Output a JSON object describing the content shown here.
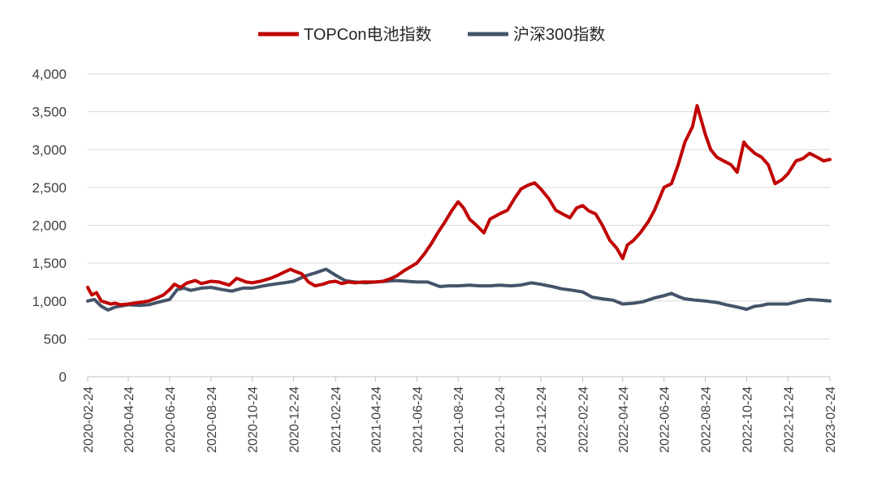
{
  "colors": {
    "series_1": "#c00000",
    "series_2": "#44546a"
  },
  "chart_data": {
    "type": "line",
    "legend_position": "top",
    "grid": true,
    "ylim": [
      0,
      4000
    ],
    "yticks": [
      "0",
      "500",
      "1,000",
      "1,500",
      "2,000",
      "2,500",
      "3,000",
      "3,500",
      "4,000"
    ],
    "ytick_values": [
      0,
      500,
      1000,
      1500,
      2000,
      2500,
      3000,
      3500,
      4000
    ],
    "xlim": [
      "2020-02-24",
      "2023-02-24"
    ],
    "xticks": [
      "2020-02-24",
      "2020-04-24",
      "2020-06-24",
      "2020-08-24",
      "2020-10-24",
      "2020-12-24",
      "2021-02-24",
      "2021-04-24",
      "2021-06-24",
      "2021-08-24",
      "2021-10-24",
      "2021-12-24",
      "2022-02-24",
      "2022-04-24",
      "2022-06-24",
      "2022-08-24",
      "2022-10-24",
      "2022-12-24",
      "2023-02-24"
    ],
    "series": [
      {
        "name": "TOPCon电池指数",
        "color": "#c00000",
        "points": [
          [
            "2020-02-24",
            1180
          ],
          [
            "2020-03-01",
            1080
          ],
          [
            "2020-03-08",
            1110
          ],
          [
            "2020-03-15",
            1000
          ],
          [
            "2020-03-22",
            980
          ],
          [
            "2020-03-29",
            960
          ],
          [
            "2020-04-05",
            970
          ],
          [
            "2020-04-12",
            950
          ],
          [
            "2020-04-24",
            960
          ],
          [
            "2020-05-10",
            980
          ],
          [
            "2020-05-24",
            1000
          ],
          [
            "2020-06-05",
            1040
          ],
          [
            "2020-06-15",
            1080
          ],
          [
            "2020-06-24",
            1150
          ],
          [
            "2020-07-01",
            1220
          ],
          [
            "2020-07-10",
            1180
          ],
          [
            "2020-07-20",
            1240
          ],
          [
            "2020-08-01",
            1270
          ],
          [
            "2020-08-10",
            1230
          ],
          [
            "2020-08-24",
            1260
          ],
          [
            "2020-09-05",
            1250
          ],
          [
            "2020-09-20",
            1210
          ],
          [
            "2020-10-01",
            1300
          ],
          [
            "2020-10-15",
            1250
          ],
          [
            "2020-10-24",
            1240
          ],
          [
            "2020-11-05",
            1260
          ],
          [
            "2020-11-20",
            1300
          ],
          [
            "2020-12-01",
            1340
          ],
          [
            "2020-12-10",
            1380
          ],
          [
            "2020-12-20",
            1420
          ],
          [
            "2020-12-24",
            1400
          ],
          [
            "2021-01-05",
            1360
          ],
          [
            "2021-01-15",
            1250
          ],
          [
            "2021-01-25",
            1200
          ],
          [
            "2021-02-05",
            1220
          ],
          [
            "2021-02-15",
            1250
          ],
          [
            "2021-02-24",
            1260
          ],
          [
            "2021-03-05",
            1230
          ],
          [
            "2021-03-15",
            1250
          ],
          [
            "2021-03-25",
            1240
          ],
          [
            "2021-04-05",
            1250
          ],
          [
            "2021-04-24",
            1250
          ],
          [
            "2021-05-05",
            1260
          ],
          [
            "2021-05-15",
            1290
          ],
          [
            "2021-05-25",
            1330
          ],
          [
            "2021-06-05",
            1400
          ],
          [
            "2021-06-24",
            1500
          ],
          [
            "2021-07-05",
            1620
          ],
          [
            "2021-07-15",
            1750
          ],
          [
            "2021-07-25",
            1900
          ],
          [
            "2021-08-05",
            2050
          ],
          [
            "2021-08-15",
            2200
          ],
          [
            "2021-08-24",
            2310
          ],
          [
            "2021-09-01",
            2230
          ],
          [
            "2021-09-10",
            2080
          ],
          [
            "2021-09-20",
            2000
          ],
          [
            "2021-10-01",
            1900
          ],
          [
            "2021-10-10",
            2080
          ],
          [
            "2021-10-24",
            2150
          ],
          [
            "2021-11-05",
            2200
          ],
          [
            "2021-11-15",
            2350
          ],
          [
            "2021-11-25",
            2480
          ],
          [
            "2021-12-05",
            2530
          ],
          [
            "2021-12-15",
            2560
          ],
          [
            "2021-12-24",
            2480
          ],
          [
            "2022-01-05",
            2350
          ],
          [
            "2022-01-15",
            2200
          ],
          [
            "2022-01-25",
            2150
          ],
          [
            "2022-02-05",
            2100
          ],
          [
            "2022-02-15",
            2230
          ],
          [
            "2022-02-24",
            2260
          ],
          [
            "2022-03-05",
            2190
          ],
          [
            "2022-03-15",
            2150
          ],
          [
            "2022-03-25",
            2000
          ],
          [
            "2022-04-05",
            1800
          ],
          [
            "2022-04-15",
            1700
          ],
          [
            "2022-04-24",
            1560
          ],
          [
            "2022-05-01",
            1740
          ],
          [
            "2022-05-10",
            1800
          ],
          [
            "2022-05-20",
            1900
          ],
          [
            "2022-06-01",
            2050
          ],
          [
            "2022-06-10",
            2200
          ],
          [
            "2022-06-24",
            2500
          ],
          [
            "2022-07-05",
            2550
          ],
          [
            "2022-07-15",
            2800
          ],
          [
            "2022-07-25",
            3100
          ],
          [
            "2022-08-05",
            3300
          ],
          [
            "2022-08-12",
            3580
          ],
          [
            "2022-08-24",
            3200
          ],
          [
            "2022-09-01",
            3000
          ],
          [
            "2022-09-10",
            2900
          ],
          [
            "2022-09-20",
            2850
          ],
          [
            "2022-10-01",
            2800
          ],
          [
            "2022-10-10",
            2700
          ],
          [
            "2022-10-20",
            3100
          ],
          [
            "2022-10-24",
            3050
          ],
          [
            "2022-11-05",
            2950
          ],
          [
            "2022-11-15",
            2900
          ],
          [
            "2022-11-25",
            2800
          ],
          [
            "2022-12-05",
            2550
          ],
          [
            "2022-12-15",
            2600
          ],
          [
            "2022-12-24",
            2680
          ],
          [
            "2023-01-05",
            2850
          ],
          [
            "2023-01-15",
            2880
          ],
          [
            "2023-01-25",
            2950
          ],
          [
            "2023-02-05",
            2900
          ],
          [
            "2023-02-15",
            2850
          ],
          [
            "2023-02-24",
            2870
          ]
        ]
      },
      {
        "name": "沪深300指数",
        "color": "#44546a",
        "points": [
          [
            "2020-02-24",
            1000
          ],
          [
            "2020-03-05",
            1020
          ],
          [
            "2020-03-15",
            930
          ],
          [
            "2020-03-25",
            880
          ],
          [
            "2020-04-05",
            920
          ],
          [
            "2020-04-24",
            950
          ],
          [
            "2020-05-10",
            940
          ],
          [
            "2020-05-24",
            950
          ],
          [
            "2020-06-10",
            990
          ],
          [
            "2020-06-24",
            1020
          ],
          [
            "2020-07-05",
            1150
          ],
          [
            "2020-07-15",
            1170
          ],
          [
            "2020-07-25",
            1140
          ],
          [
            "2020-08-10",
            1170
          ],
          [
            "2020-08-24",
            1180
          ],
          [
            "2020-09-10",
            1150
          ],
          [
            "2020-09-24",
            1130
          ],
          [
            "2020-10-10",
            1170
          ],
          [
            "2020-10-24",
            1170
          ],
          [
            "2020-11-10",
            1200
          ],
          [
            "2020-11-24",
            1220
          ],
          [
            "2020-12-10",
            1240
          ],
          [
            "2020-12-24",
            1260
          ],
          [
            "2021-01-10",
            1330
          ],
          [
            "2021-01-25",
            1370
          ],
          [
            "2021-02-10",
            1420
          ],
          [
            "2021-02-24",
            1340
          ],
          [
            "2021-03-10",
            1270
          ],
          [
            "2021-03-24",
            1250
          ],
          [
            "2021-04-10",
            1240
          ],
          [
            "2021-04-24",
            1250
          ],
          [
            "2021-05-10",
            1260
          ],
          [
            "2021-05-24",
            1270
          ],
          [
            "2021-06-10",
            1260
          ],
          [
            "2021-06-24",
            1250
          ],
          [
            "2021-07-10",
            1250
          ],
          [
            "2021-07-28",
            1190
          ],
          [
            "2021-08-10",
            1200
          ],
          [
            "2021-08-24",
            1200
          ],
          [
            "2021-09-10",
            1210
          ],
          [
            "2021-09-24",
            1200
          ],
          [
            "2021-10-10",
            1200
          ],
          [
            "2021-10-24",
            1210
          ],
          [
            "2021-11-10",
            1200
          ],
          [
            "2021-11-24",
            1210
          ],
          [
            "2021-12-10",
            1240
          ],
          [
            "2021-12-24",
            1220
          ],
          [
            "2022-01-10",
            1190
          ],
          [
            "2022-01-24",
            1160
          ],
          [
            "2022-02-10",
            1140
          ],
          [
            "2022-02-24",
            1120
          ],
          [
            "2022-03-10",
            1050
          ],
          [
            "2022-03-24",
            1030
          ],
          [
            "2022-04-10",
            1010
          ],
          [
            "2022-04-24",
            960
          ],
          [
            "2022-05-10",
            970
          ],
          [
            "2022-05-24",
            990
          ],
          [
            "2022-06-10",
            1040
          ],
          [
            "2022-06-24",
            1070
          ],
          [
            "2022-07-05",
            1100
          ],
          [
            "2022-07-15",
            1060
          ],
          [
            "2022-07-24",
            1030
          ],
          [
            "2022-08-10",
            1010
          ],
          [
            "2022-08-24",
            1000
          ],
          [
            "2022-09-10",
            980
          ],
          [
            "2022-09-24",
            950
          ],
          [
            "2022-10-10",
            920
          ],
          [
            "2022-10-24",
            890
          ],
          [
            "2022-11-05",
            930
          ],
          [
            "2022-11-15",
            940
          ],
          [
            "2022-11-24",
            960
          ],
          [
            "2022-12-10",
            960
          ],
          [
            "2022-12-24",
            960
          ],
          [
            "2023-01-10",
            1000
          ],
          [
            "2023-01-24",
            1020
          ],
          [
            "2023-02-10",
            1010
          ],
          [
            "2023-02-24",
            1000
          ]
        ]
      }
    ]
  }
}
